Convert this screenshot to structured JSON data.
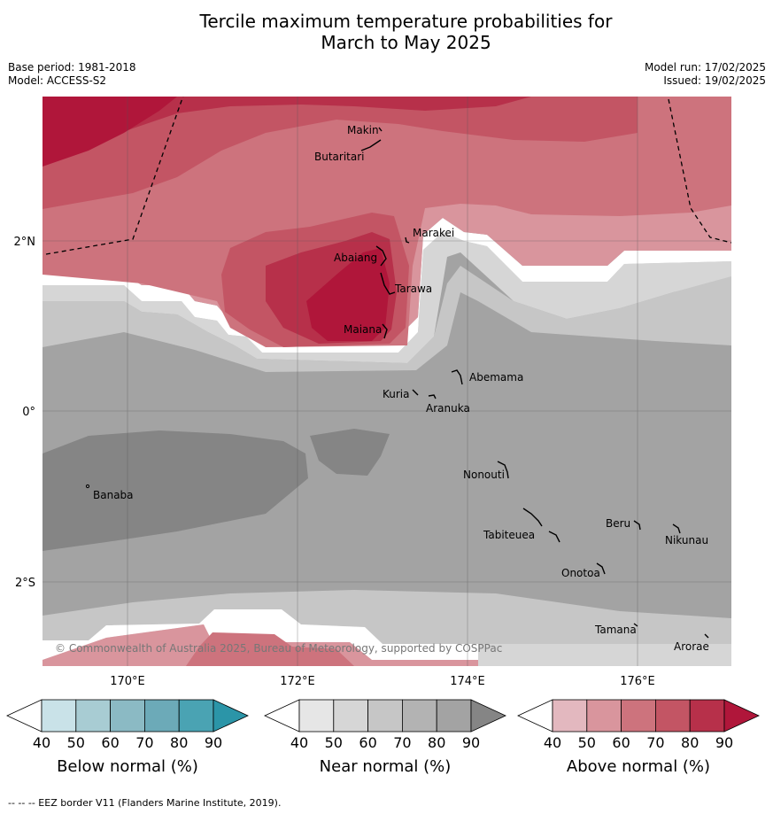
{
  "title_line1": "Tercile maximum temperature probabilities for",
  "title_line2": "March to May 2025",
  "meta": {
    "base_period": "Base period: 1981-2018",
    "model": "Model: ACCESS-S2",
    "model_run": "Model run: 17/02/2025",
    "issued": "Issued: 19/02/2025"
  },
  "axes": {
    "lat_labels": [
      "2°N",
      "0°",
      "2°S"
    ],
    "lon_labels": [
      "170°E",
      "172°E",
      "174°E",
      "176°E"
    ]
  },
  "places": {
    "makin": "Makin",
    "butaritari": "Butaritari",
    "marakei": "Marakei",
    "abaiang": "Abaiang",
    "tarawa": "Tarawa",
    "maiana": "Maiana",
    "abemama": "Abemama",
    "kuria": "Kuria",
    "aranuka": "Aranuka",
    "banaba": "Banaba",
    "nonouti": "Nonouti",
    "beru": "Beru",
    "nikunau": "Nikunau",
    "tabiteuea": "Tabiteuea",
    "onotoa": "Onotoa",
    "tamana": "Tamana",
    "arorae": "Arorae"
  },
  "copyright": "© Commonwealth of Australia 2025, Bureau of Meteorology, supported by COSPPac",
  "colorbars": {
    "ticks": [
      "40",
      "50",
      "60",
      "70",
      "80",
      "90"
    ],
    "below": {
      "title": "Below normal (%)",
      "colors": [
        "#ffffff",
        "#c9e2e8",
        "#a8ccd3",
        "#8bbac4",
        "#6caab8",
        "#4aa3b3",
        "#2b95a8"
      ]
    },
    "near": {
      "title": "Near normal (%)",
      "colors": [
        "#ffffff",
        "#e6e6e6",
        "#d6d6d6",
        "#c6c6c6",
        "#b3b3b3",
        "#a3a3a3",
        "#858585"
      ]
    },
    "above": {
      "title": "Above normal (%)",
      "colors": [
        "#ffffff",
        "#e3b8bf",
        "#d9959d",
        "#cd737d",
        "#c35564",
        "#b7304a",
        "#b0163a"
      ]
    }
  },
  "footnote": "-- -- -- EEZ border V11 (Flanders Marine Institute, 2019)."
}
